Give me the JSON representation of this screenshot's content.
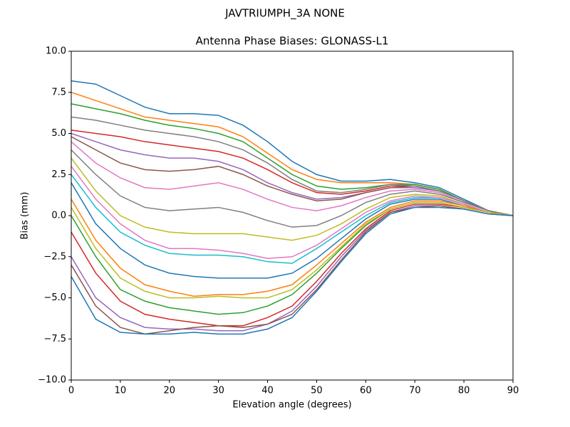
{
  "chart_data": {
    "type": "line",
    "title": "JAVTRIUMPH_3A   NONE",
    "subtitle": "Antenna Phase Biases: GLONASS-L1",
    "xlabel": "Elevation angle (degrees)",
    "ylabel": "Bias (mm)",
    "xlim": [
      0,
      90
    ],
    "ylim": [
      -10,
      10
    ],
    "xticks": [
      0,
      10,
      20,
      30,
      40,
      50,
      60,
      70,
      80,
      90
    ],
    "yticks": [
      {
        "value": -10,
        "label": "−10.0"
      },
      {
        "value": -7.5,
        "label": "−7.5"
      },
      {
        "value": -5,
        "label": "−5.0"
      },
      {
        "value": -2.5,
        "label": "−2.5"
      },
      {
        "value": 0,
        "label": "0.0"
      },
      2.5,
      {
        "value": 5,
        "label": "5.0"
      },
      7.5,
      {
        "value": 10,
        "label": "10.0"
      }
    ],
    "x": [
      0,
      5,
      10,
      15,
      20,
      25,
      30,
      35,
      40,
      45,
      50,
      55,
      60,
      65,
      70,
      75,
      80,
      85,
      90
    ],
    "series": [
      {
        "color": "#1f77b4",
        "values": [
          8.2,
          8.0,
          7.3,
          6.6,
          6.2,
          6.2,
          6.1,
          5.5,
          4.5,
          3.3,
          2.5,
          2.1,
          2.1,
          2.2,
          2.0,
          1.7,
          1.0,
          0.3,
          0
        ]
      },
      {
        "color": "#ff7f0e",
        "values": [
          7.5,
          7.0,
          6.5,
          6.0,
          5.8,
          5.6,
          5.4,
          4.8,
          3.8,
          2.8,
          2.2,
          2.0,
          2.0,
          2.0,
          1.9,
          1.6,
          0.9,
          0.3,
          0
        ]
      },
      {
        "color": "#2ca02c",
        "values": [
          6.8,
          6.5,
          6.2,
          5.8,
          5.5,
          5.3,
          5.0,
          4.5,
          3.5,
          2.5,
          1.8,
          1.6,
          1.7,
          1.9,
          1.9,
          1.6,
          0.9,
          0.3,
          0
        ]
      },
      {
        "color": "#d62728",
        "values": [
          5.2,
          5.0,
          4.8,
          4.5,
          4.3,
          4.1,
          3.9,
          3.5,
          2.8,
          2.0,
          1.4,
          1.3,
          1.5,
          1.8,
          1.8,
          1.5,
          0.9,
          0.3,
          0
        ]
      },
      {
        "color": "#9467bd",
        "values": [
          5.0,
          4.5,
          4.0,
          3.7,
          3.5,
          3.5,
          3.3,
          2.8,
          2.0,
          1.4,
          1.0,
          1.1,
          1.4,
          1.7,
          1.7,
          1.5,
          0.9,
          0.3,
          0
        ]
      },
      {
        "color": "#8c564b",
        "values": [
          4.8,
          4.0,
          3.2,
          2.8,
          2.7,
          2.8,
          3.0,
          2.5,
          1.8,
          1.3,
          0.9,
          1.0,
          1.4,
          1.7,
          1.8,
          1.5,
          0.9,
          0.3,
          0
        ]
      },
      {
        "color": "#e377c2",
        "values": [
          4.5,
          3.2,
          2.3,
          1.7,
          1.6,
          1.8,
          2.0,
          1.6,
          1.0,
          0.5,
          0.3,
          0.6,
          1.1,
          1.5,
          1.6,
          1.4,
          0.8,
          0.3,
          0
        ]
      },
      {
        "color": "#7f7f7f",
        "values": [
          4.0,
          2.5,
          1.2,
          0.5,
          0.3,
          0.4,
          0.5,
          0.2,
          -0.3,
          -0.7,
          -0.6,
          0.0,
          0.8,
          1.3,
          1.5,
          1.3,
          0.8,
          0.3,
          0
        ]
      },
      {
        "color": "#bcbd22",
        "values": [
          3.5,
          1.5,
          0.0,
          -0.7,
          -1.0,
          -1.1,
          -1.1,
          -1.1,
          -1.3,
          -1.5,
          -1.2,
          -0.5,
          0.4,
          1.1,
          1.3,
          1.2,
          0.7,
          0.2,
          0
        ]
      },
      {
        "color": "#17becf",
        "values": [
          2.5,
          0.5,
          -1.0,
          -1.8,
          -2.3,
          -2.4,
          -2.4,
          -2.5,
          -2.8,
          -2.9,
          -2.0,
          -1.0,
          0.0,
          0.8,
          1.1,
          1.1,
          0.7,
          0.2,
          0
        ]
      },
      {
        "color": "#1f77b4",
        "values": [
          2.0,
          -0.5,
          -2.0,
          -3.0,
          -3.5,
          -3.7,
          -3.8,
          -3.8,
          -3.8,
          -3.5,
          -2.6,
          -1.4,
          -0.2,
          0.7,
          1.0,
          1.0,
          0.6,
          0.2,
          0
        ]
      },
      {
        "color": "#ff7f0e",
        "values": [
          1.0,
          -1.5,
          -3.2,
          -4.2,
          -4.6,
          -4.9,
          -4.8,
          -4.8,
          -4.6,
          -4.2,
          -3.0,
          -1.7,
          -0.4,
          0.5,
          0.9,
          0.9,
          0.6,
          0.2,
          0
        ]
      },
      {
        "color": "#2ca02c",
        "values": [
          0.0,
          -2.5,
          -4.5,
          -5.2,
          -5.6,
          -5.8,
          -6.0,
          -5.9,
          -5.5,
          -4.8,
          -3.5,
          -2.0,
          -0.6,
          0.4,
          0.8,
          0.8,
          0.5,
          0.2,
          0
        ]
      },
      {
        "color": "#d62728",
        "values": [
          -1.0,
          -3.5,
          -5.2,
          -6.0,
          -6.3,
          -6.5,
          -6.7,
          -6.7,
          -6.2,
          -5.5,
          -4.0,
          -2.3,
          -0.8,
          0.3,
          0.7,
          0.7,
          0.5,
          0.2,
          0
        ]
      },
      {
        "color": "#9467bd",
        "values": [
          -2.5,
          -5.0,
          -6.2,
          -6.8,
          -6.9,
          -6.9,
          -7.0,
          -7.0,
          -6.6,
          -5.8,
          -4.3,
          -2.5,
          -0.9,
          0.2,
          0.6,
          0.6,
          0.4,
          0.1,
          0
        ]
      },
      {
        "color": "#8c564b",
        "values": [
          -3.0,
          -5.5,
          -6.8,
          -7.2,
          -7.0,
          -6.8,
          -6.7,
          -6.8,
          -6.6,
          -6.0,
          -4.5,
          -2.7,
          -1.0,
          0.2,
          0.5,
          0.6,
          0.4,
          0.1,
          0
        ]
      },
      {
        "color": "#e377c2",
        "values": [
          3.0,
          1.0,
          -0.5,
          -1.5,
          -2.0,
          -2.0,
          -2.1,
          -2.3,
          -2.6,
          -2.5,
          -1.8,
          -0.8,
          0.2,
          0.9,
          1.2,
          1.1,
          0.7,
          0.2,
          0
        ]
      },
      {
        "color": "#7f7f7f",
        "values": [
          6.0,
          5.8,
          5.5,
          5.2,
          5.0,
          4.8,
          4.5,
          4.0,
          3.2,
          2.2,
          1.5,
          1.4,
          1.6,
          1.9,
          1.8,
          1.5,
          0.9,
          0.3,
          0
        ]
      },
      {
        "color": "#bcbd22",
        "values": [
          0.5,
          -2.0,
          -3.8,
          -4.6,
          -5.0,
          -5.0,
          -4.9,
          -5.0,
          -5.0,
          -4.5,
          -3.3,
          -1.9,
          -0.5,
          0.4,
          0.8,
          0.8,
          0.5,
          0.2,
          0
        ]
      },
      {
        "color": "#1f77b4",
        "values": [
          -3.7,
          -6.3,
          -7.1,
          -7.2,
          -7.2,
          -7.1,
          -7.2,
          -7.2,
          -6.9,
          -6.2,
          -4.6,
          -2.8,
          -1.1,
          0.1,
          0.5,
          0.5,
          0.4,
          0.1,
          0
        ]
      }
    ]
  }
}
